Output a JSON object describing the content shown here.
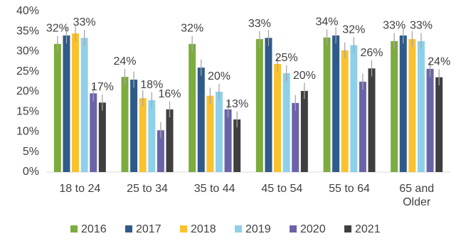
{
  "chart_data": {
    "type": "bar",
    "categories": [
      "18 to 24",
      "25 to 34",
      "35 to 44",
      "45 to 54",
      "55 to 64",
      "65 and Older"
    ],
    "series": [
      {
        "name": "2016",
        "color": "#7cac3c",
        "values": [
          31.9,
          23.7,
          31.9,
          33.1,
          33.5,
          32.6
        ],
        "errors": [
          2,
          2,
          2,
          2,
          2,
          2
        ],
        "value_labels": [
          "32%",
          "24%",
          "32%",
          "33%",
          "34%",
          "33%"
        ]
      },
      {
        "name": "2017",
        "color": "#2f5b8a",
        "values": [
          34,
          23,
          26,
          33.4,
          34,
          34
        ],
        "errors": [
          2,
          2,
          2,
          2,
          2,
          2
        ]
      },
      {
        "name": "2018",
        "color": "#fcc12e",
        "values": [
          34.5,
          18.4,
          19,
          26.9,
          30.3,
          33.1
        ],
        "errors": [
          2,
          2,
          2,
          2,
          2,
          2
        ]
      },
      {
        "name": "2019",
        "color": "#8ed0ea",
        "values": [
          33.4,
          17.9,
          20,
          24.6,
          31.6,
          32.6
        ],
        "errors": [
          2,
          2,
          2,
          2,
          2,
          2
        ],
        "value_labels": [
          "33%",
          "18%",
          "20%",
          "25%",
          "32%",
          "33%"
        ]
      },
      {
        "name": "2020",
        "color": "#6b63a8",
        "values": [
          19.6,
          10.4,
          15.6,
          17.2,
          22.5,
          25.7
        ],
        "errors": [
          2,
          2,
          2,
          2,
          2,
          2
        ]
      },
      {
        "name": "2021",
        "color": "#3f3f3f",
        "values": [
          17.3,
          15.6,
          13.1,
          20.2,
          25.8,
          23.6
        ],
        "errors": [
          2,
          2,
          2,
          2,
          2,
          2
        ],
        "value_labels": [
          "17%",
          "16%",
          "13%",
          "20%",
          "26%",
          "24%"
        ]
      }
    ],
    "ylim": [
      0,
      40
    ],
    "yticks": [
      {
        "value": 0,
        "label": "0%"
      },
      {
        "value": 5,
        "label": "5%"
      },
      {
        "value": 10,
        "label": "10%"
      },
      {
        "value": 15,
        "label": "15%"
      },
      {
        "value": 20,
        "label": "20%"
      },
      {
        "value": 25,
        "label": "25%"
      },
      {
        "value": 30,
        "label": "30%"
      },
      {
        "value": 35,
        "label": "35%"
      },
      {
        "value": 40,
        "label": "40%"
      }
    ],
    "legend": "bottom"
  }
}
